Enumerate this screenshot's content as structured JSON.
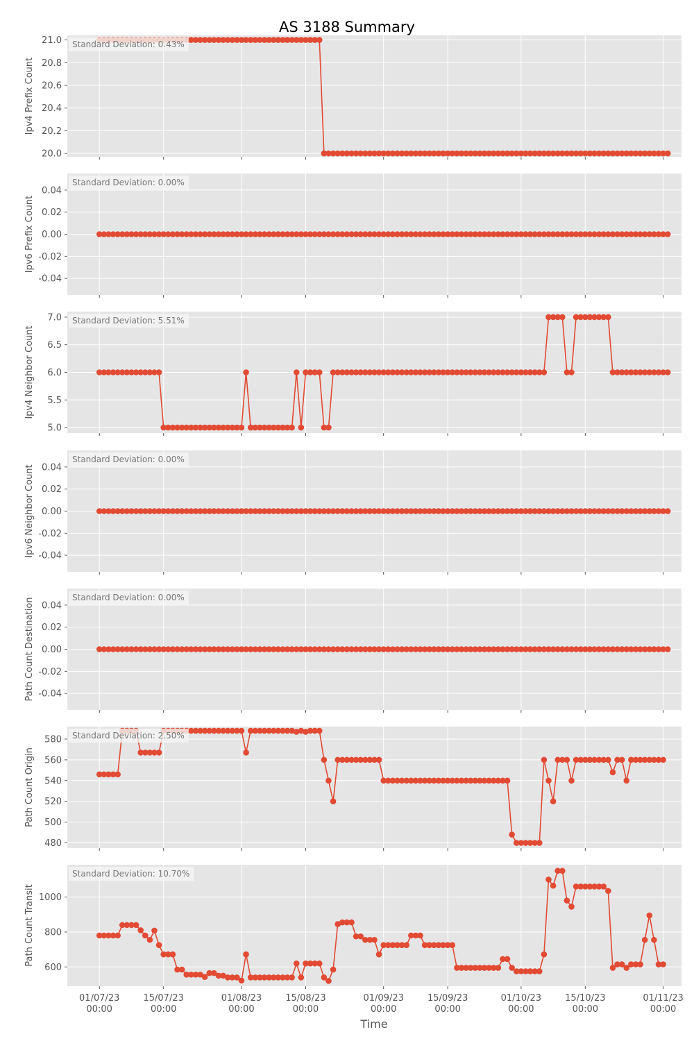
{
  "title": "AS 3188 Summary",
  "xlabel": "Time",
  "colors": {
    "line": "#E24A33",
    "panel": "#E5E5E5",
    "grid": "#FFFFFF",
    "tick": "#555555"
  },
  "x_ticks": [
    {
      "date": "2023-07-01",
      "line1": "01/07/23",
      "line2": "00:00"
    },
    {
      "date": "2023-07-15",
      "line1": "15/07/23",
      "line2": "00:00"
    },
    {
      "date": "2023-08-01",
      "line1": "01/08/23",
      "line2": "00:00"
    },
    {
      "date": "2023-08-15",
      "line1": "15/08/23",
      "line2": "00:00"
    },
    {
      "date": "2023-09-01",
      "line1": "01/09/23",
      "line2": "00:00"
    },
    {
      "date": "2023-09-15",
      "line1": "15/09/23",
      "line2": "00:00"
    },
    {
      "date": "2023-10-01",
      "line1": "01/10/23",
      "line2": "00:00"
    },
    {
      "date": "2023-10-15",
      "line1": "15/10/23",
      "line2": "00:00"
    },
    {
      "date": "2023-11-01",
      "line1": "01/11/23",
      "line2": "00:00"
    }
  ],
  "chart_data": [
    {
      "type": "line",
      "ylabel": "Ipv4 Prefix Count",
      "annotation": "Standard Deviation: 0.43%",
      "xlim": [
        "2023-06-24",
        "2023-11-05"
      ],
      "ylim": [
        19.97,
        21.04
      ],
      "yticks": [
        20.0,
        20.2,
        20.4,
        20.6,
        20.8,
        21.0
      ],
      "tick_decimals": 1,
      "x_start": "2023-07-01",
      "x_step_days": 1,
      "segments": [
        {
          "value": 21,
          "count": 49
        },
        {
          "value": 20,
          "count": 76
        }
      ]
    },
    {
      "type": "line",
      "ylabel": "Ipv6 Prefix Count",
      "annotation": "Standard Deviation: 0.00%",
      "xlim": [
        "2023-06-24",
        "2023-11-05"
      ],
      "ylim": [
        -0.055,
        0.055
      ],
      "yticks": [
        -0.04,
        -0.02,
        0.0,
        0.02,
        0.04
      ],
      "tick_decimals": 2,
      "x_start": "2023-07-01",
      "x_step_days": 1,
      "segments": [
        {
          "value": 0,
          "count": 125
        }
      ]
    },
    {
      "type": "line",
      "ylabel": "Ipv4 Neighbor Count",
      "annotation": "Standard Deviation: 5.51%",
      "xlim": [
        "2023-06-24",
        "2023-11-05"
      ],
      "ylim": [
        4.9,
        7.1
      ],
      "yticks": [
        5.0,
        5.5,
        6.0,
        6.5,
        7.0
      ],
      "tick_decimals": 1,
      "x_start": "2023-07-01",
      "x_step_days": 1,
      "segments": [
        {
          "value": 6,
          "count": 14
        },
        {
          "value": 5,
          "count": 18
        },
        {
          "value": 6,
          "count": 1
        },
        {
          "value": 5,
          "count": 10
        },
        {
          "value": 6,
          "count": 1
        },
        {
          "value": 5,
          "count": 1
        },
        {
          "value": 6,
          "count": 4
        },
        {
          "value": 5,
          "count": 2
        },
        {
          "value": 6,
          "count": 47
        },
        {
          "value": 7,
          "count": 4
        },
        {
          "value": 6,
          "count": 2
        },
        {
          "value": 7,
          "count": 8
        },
        {
          "value": 6,
          "count": 13
        }
      ]
    },
    {
      "type": "line",
      "ylabel": "Ipv6 Neighbor Count",
      "annotation": "Standard Deviation: 0.00%",
      "xlim": [
        "2023-06-24",
        "2023-11-05"
      ],
      "ylim": [
        -0.055,
        0.055
      ],
      "yticks": [
        -0.04,
        -0.02,
        0.0,
        0.02,
        0.04
      ],
      "tick_decimals": 2,
      "x_start": "2023-07-01",
      "x_step_days": 1,
      "segments": [
        {
          "value": 0,
          "count": 125
        }
      ]
    },
    {
      "type": "line",
      "ylabel": "Path Count Destination",
      "annotation": "Standard Deviation: 0.00%",
      "xlim": [
        "2023-06-24",
        "2023-11-05"
      ],
      "ylim": [
        -0.055,
        0.055
      ],
      "yticks": [
        -0.04,
        -0.02,
        0.0,
        0.02,
        0.04
      ],
      "tick_decimals": 2,
      "x_start": "2023-07-01",
      "x_step_days": 1,
      "segments": [
        {
          "value": 0,
          "count": 125
        }
      ]
    },
    {
      "type": "line",
      "ylabel": "Path Count Origin",
      "annotation": "Standard Deviation: 2.50%",
      "xlim": [
        "2023-06-24",
        "2023-11-05"
      ],
      "ylim": [
        475,
        592
      ],
      "yticks": [
        480,
        500,
        520,
        540,
        560,
        580
      ],
      "tick_decimals": 0,
      "x_start": "2023-07-01",
      "x_step_days": 1,
      "segments": [
        {
          "value": 546,
          "count": 5
        },
        {
          "value": 588,
          "count": 4
        },
        {
          "value": 567,
          "count": 5
        },
        {
          "value": 588,
          "count": 18
        },
        {
          "value": 567,
          "count": 1
        },
        {
          "value": 588,
          "count": 10
        },
        {
          "value": 587,
          "count": 1
        },
        {
          "value": 588,
          "count": 1
        },
        {
          "value": 587,
          "count": 1
        },
        {
          "value": 588,
          "count": 3
        },
        {
          "value": 560,
          "count": 1
        },
        {
          "value": 540,
          "count": 1
        },
        {
          "value": 520,
          "count": 1
        },
        {
          "value": 560,
          "count": 10
        },
        {
          "value": 540,
          "count": 28
        },
        {
          "value": 488,
          "count": 1
        },
        {
          "value": 480,
          "count": 6
        },
        {
          "value": 560,
          "count": 1
        },
        {
          "value": 540,
          "count": 1
        },
        {
          "value": 520,
          "count": 1
        },
        {
          "value": 560,
          "count": 3
        },
        {
          "value": 540,
          "count": 1
        },
        {
          "value": 560,
          "count": 8
        },
        {
          "value": 548,
          "count": 1
        },
        {
          "value": 560,
          "count": 2
        },
        {
          "value": 540,
          "count": 1
        },
        {
          "value": 560,
          "count": 8
        }
      ]
    },
    {
      "type": "line",
      "ylabel": "Path Count Transit",
      "annotation": "Standard Deviation: 10.70%",
      "xlim": [
        "2023-06-24",
        "2023-11-05"
      ],
      "ylim": [
        490,
        1185
      ],
      "yticks": [
        600,
        800,
        1000
      ],
      "tick_decimals": 0,
      "x_start": "2023-07-01",
      "x_step_days": 1,
      "segments": [
        {
          "value": 780,
          "count": 5
        },
        {
          "value": 840,
          "count": 4
        },
        {
          "value": 810,
          "count": 1
        },
        {
          "value": 780,
          "count": 1
        },
        {
          "value": 755,
          "count": 1
        },
        {
          "value": 808,
          "count": 1
        },
        {
          "value": 725,
          "count": 1
        },
        {
          "value": 672,
          "count": 3
        },
        {
          "value": 585,
          "count": 2
        },
        {
          "value": 556,
          "count": 4
        },
        {
          "value": 543,
          "count": 1
        },
        {
          "value": 565,
          "count": 2
        },
        {
          "value": 550,
          "count": 2
        },
        {
          "value": 540,
          "count": 3
        },
        {
          "value": 522,
          "count": 1
        },
        {
          "value": 672,
          "count": 1
        },
        {
          "value": 540,
          "count": 10
        },
        {
          "value": 620,
          "count": 1
        },
        {
          "value": 540,
          "count": 1
        },
        {
          "value": 620,
          "count": 4
        },
        {
          "value": 540,
          "count": 1
        },
        {
          "value": 520,
          "count": 1
        },
        {
          "value": 585,
          "count": 1
        },
        {
          "value": 845,
          "count": 1
        },
        {
          "value": 855,
          "count": 3
        },
        {
          "value": 775,
          "count": 2
        },
        {
          "value": 755,
          "count": 3
        },
        {
          "value": 672,
          "count": 1
        },
        {
          "value": 725,
          "count": 6
        },
        {
          "value": 780,
          "count": 3
        },
        {
          "value": 725,
          "count": 7
        },
        {
          "value": 595,
          "count": 10
        },
        {
          "value": 645,
          "count": 2
        },
        {
          "value": 595,
          "count": 1
        },
        {
          "value": 575,
          "count": 6
        },
        {
          "value": 672,
          "count": 1
        },
        {
          "value": 1100,
          "count": 1
        },
        {
          "value": 1065,
          "count": 1
        },
        {
          "value": 1150,
          "count": 2
        },
        {
          "value": 980,
          "count": 1
        },
        {
          "value": 945,
          "count": 1
        },
        {
          "value": 1060,
          "count": 7
        },
        {
          "value": 1035,
          "count": 1
        },
        {
          "value": 595,
          "count": 1
        },
        {
          "value": 615,
          "count": 2
        },
        {
          "value": 595,
          "count": 1
        },
        {
          "value": 615,
          "count": 3
        },
        {
          "value": 755,
          "count": 1
        },
        {
          "value": 895,
          "count": 1
        },
        {
          "value": 755,
          "count": 1
        },
        {
          "value": 615,
          "count": 2
        }
      ]
    }
  ]
}
